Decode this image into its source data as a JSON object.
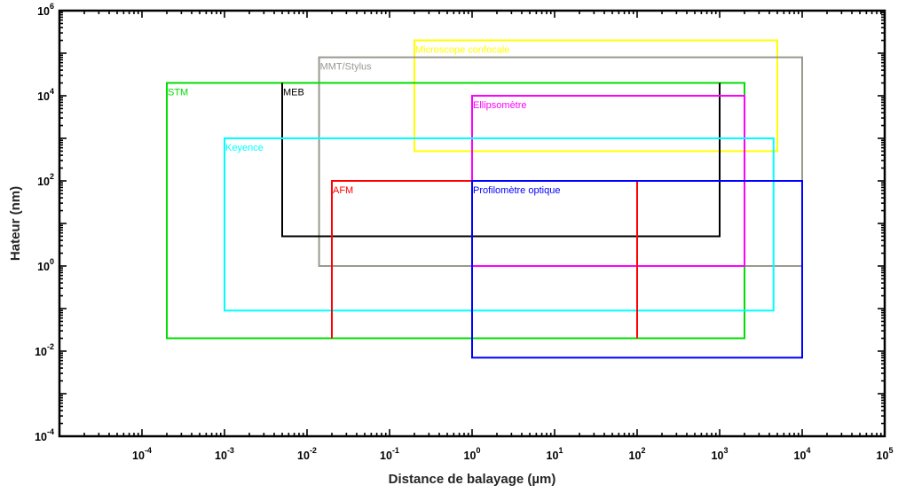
{
  "chart_data": {
    "type": "rectangle-regions",
    "title": "",
    "xlabel": "Distance de balayage (µm)",
    "ylabel": "Hateur (nm)",
    "xscale": "log",
    "yscale": "log",
    "xlim": [
      1e-05,
      100000
    ],
    "ylim": [
      0.0001,
      1000000
    ],
    "grid": false,
    "x_ticks": [
      {
        "base": "10",
        "exp": "-4"
      },
      {
        "base": "10",
        "exp": "-3"
      },
      {
        "base": "10",
        "exp": "-2"
      },
      {
        "base": "10",
        "exp": "-1"
      },
      {
        "base": "10",
        "exp": "0"
      },
      {
        "base": "10",
        "exp": "1"
      },
      {
        "base": "10",
        "exp": "2"
      },
      {
        "base": "10",
        "exp": "3"
      },
      {
        "base": "10",
        "exp": "4"
      },
      {
        "base": "10",
        "exp": "5"
      }
    ],
    "y_ticks": [
      {
        "base": "10",
        "exp": "-4"
      },
      {
        "base": "10",
        "exp": "-2"
      },
      {
        "base": "10",
        "exp": "0"
      },
      {
        "base": "10",
        "exp": "2"
      },
      {
        "base": "10",
        "exp": "4"
      },
      {
        "base": "10",
        "exp": "6"
      }
    ],
    "regions": [
      {
        "name": "Microscope confocale",
        "color": "#ffff00",
        "x": [
          0.2,
          5000
        ],
        "y": [
          500,
          200000
        ],
        "label_anchor": "top-left"
      },
      {
        "name": "MMT/Stylus",
        "color": "#999990",
        "x": [
          0.014,
          10000
        ],
        "y": [
          1,
          80000
        ],
        "label_anchor": "top-left"
      },
      {
        "name": "STM",
        "color": "#00dd00",
        "x": [
          0.0002,
          2000
        ],
        "y": [
          0.02,
          20000
        ],
        "label_anchor": "top-left"
      },
      {
        "name": "MEB",
        "color": "#000000",
        "x": [
          0.005,
          1000
        ],
        "y": [
          5,
          20000
        ],
        "label_anchor": "top-left",
        "open_top": true
      },
      {
        "name": "Ellipsomètre",
        "color": "#ff00ff",
        "x": [
          1,
          2000
        ],
        "y": [
          1,
          10000
        ],
        "label_anchor": "top-left"
      },
      {
        "name": "Keyence",
        "color": "#00ffff",
        "x": [
          0.001,
          4500
        ],
        "y": [
          0.09,
          1000
        ],
        "label_anchor": "top-left"
      },
      {
        "name": "AFM",
        "color": "#ff0000",
        "x": [
          0.02,
          100
        ],
        "y": [
          0.02,
          100
        ],
        "label_anchor": "top-left",
        "open_bottom": true
      },
      {
        "name": "Profilomètre optique",
        "color": "#0000ff",
        "x": [
          1,
          10000
        ],
        "y": [
          0.007,
          100
        ],
        "label_anchor": "top-left"
      }
    ]
  }
}
